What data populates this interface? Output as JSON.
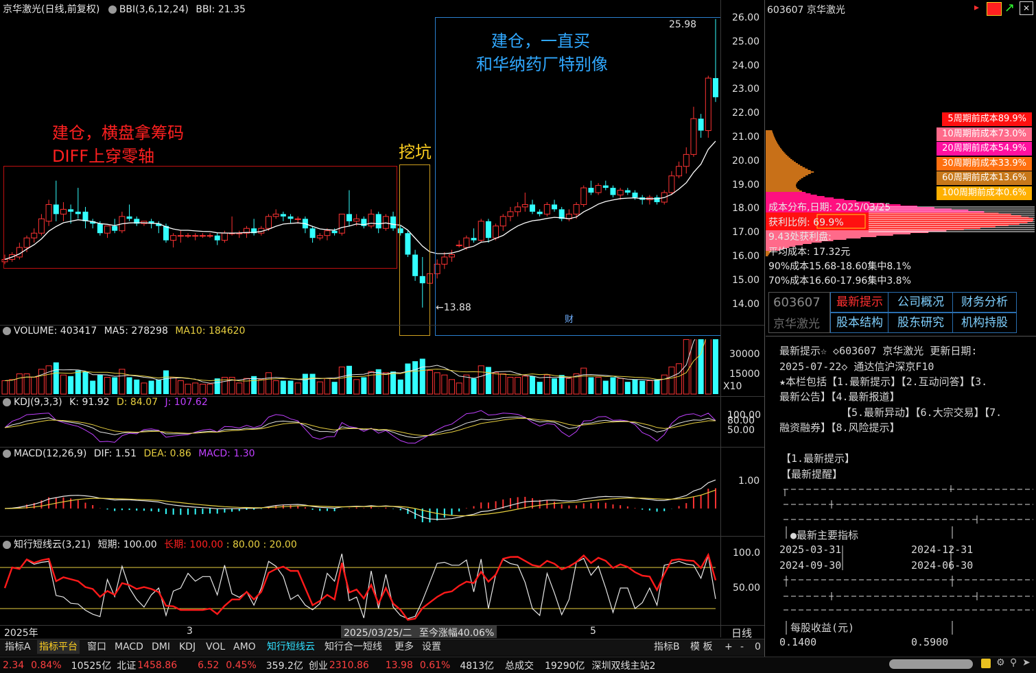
{
  "main": {
    "header": {
      "title": "京华激光(日线,前复权)",
      "indicator": "BBI(3,6,12,24)",
      "value": "BBI: 21.35"
    },
    "axis": [
      "26.00",
      "25.00",
      "24.00",
      "23.00",
      "22.00",
      "21.00",
      "20.00",
      "19.00",
      "18.00",
      "17.00",
      "16.00",
      "15.00",
      "14.00"
    ],
    "high_label": "25.98",
    "low_label": "←13.88",
    "cai_label": "财",
    "annotations": {
      "left_line1": "建仓，横盘拿筹码",
      "left_line2": "DIFF上穿零轴",
      "middle": "挖坑",
      "right_line1": "建仓，一直买",
      "right_line2": "和华纳药厂特别像"
    },
    "colors": {
      "up": "#ff3333",
      "down": "#33ffff",
      "bbi": "#ffffff"
    }
  },
  "chart_data": {
    "type": "candlestick",
    "ohlc": [
      [
        15.8,
        16.1,
        15.7,
        15.9
      ],
      [
        15.9,
        16.2,
        15.8,
        16.1
      ],
      [
        16.0,
        16.6,
        15.9,
        16.4
      ],
      [
        16.4,
        16.9,
        16.2,
        16.8
      ],
      [
        16.8,
        17.2,
        16.6,
        17.0
      ],
      [
        17.0,
        17.8,
        16.9,
        17.6
      ],
      [
        17.5,
        18.4,
        17.3,
        18.2
      ],
      [
        18.2,
        19.2,
        17.5,
        17.8
      ],
      [
        17.8,
        18.3,
        17.5,
        18.0
      ],
      [
        18.0,
        18.2,
        17.4,
        17.9
      ],
      [
        17.9,
        18.9,
        17.6,
        17.8
      ],
      [
        17.9,
        18.1,
        17.2,
        17.5
      ],
      [
        17.5,
        17.6,
        17.2,
        17.4
      ],
      [
        17.4,
        17.5,
        16.9,
        17.0
      ],
      [
        17.0,
        17.3,
        16.8,
        17.3
      ],
      [
        17.3,
        17.6,
        17.0,
        17.1
      ],
      [
        17.1,
        17.9,
        17.0,
        17.7
      ],
      [
        17.7,
        18.2,
        17.5,
        17.6
      ],
      [
        17.6,
        17.7,
        17.3,
        17.4
      ],
      [
        17.4,
        17.5,
        17.3,
        17.5
      ],
      [
        17.5,
        17.6,
        17.2,
        17.4
      ],
      [
        17.4,
        17.5,
        17.0,
        17.3
      ],
      [
        17.3,
        17.4,
        16.6,
        16.7
      ],
      [
        16.7,
        17.0,
        16.4,
        16.9
      ],
      [
        16.9,
        17.1,
        16.6,
        16.9
      ],
      [
        16.9,
        17.0,
        16.8,
        16.9
      ],
      [
        16.9,
        17.0,
        16.7,
        16.9
      ],
      [
        16.9,
        17.0,
        16.8,
        16.9
      ],
      [
        16.9,
        17.0,
        16.8,
        16.9
      ],
      [
        16.9,
        17.0,
        16.5,
        16.7
      ],
      [
        16.7,
        17.1,
        16.6,
        17.0
      ],
      [
        17.0,
        17.7,
        16.9,
        17.0
      ],
      [
        17.0,
        17.1,
        16.8,
        17.0
      ],
      [
        17.0,
        17.3,
        16.8,
        17.2
      ],
      [
        17.2,
        17.6,
        16.9,
        17.0
      ],
      [
        17.0,
        17.3,
        16.9,
        17.2
      ],
      [
        17.2,
        17.8,
        17.1,
        17.7
      ],
      [
        17.7,
        18.0,
        17.6,
        17.8
      ],
      [
        17.8,
        17.9,
        17.5,
        17.7
      ],
      [
        17.7,
        17.8,
        17.4,
        17.6
      ],
      [
        17.6,
        17.7,
        17.4,
        17.6
      ],
      [
        17.6,
        17.7,
        17.0,
        17.2
      ],
      [
        17.2,
        17.3,
        16.6,
        16.8
      ],
      [
        16.8,
        17.0,
        16.7,
        16.9
      ],
      [
        16.9,
        17.2,
        16.7,
        17.1
      ],
      [
        17.1,
        17.2,
        16.9,
        17.0
      ],
      [
        17.0,
        17.8,
        16.9,
        17.8
      ],
      [
        17.8,
        18.8,
        17.3,
        17.5
      ],
      [
        17.5,
        17.8,
        17.3,
        17.6
      ],
      [
        17.6,
        17.7,
        17.2,
        17.3
      ],
      [
        17.3,
        18.0,
        17.2,
        17.8
      ],
      [
        17.8,
        17.9,
        17.0,
        17.2
      ],
      [
        17.2,
        17.8,
        17.1,
        17.7
      ],
      [
        17.7,
        17.9,
        17.1,
        17.2
      ],
      [
        17.2,
        17.3,
        16.9,
        17.0
      ],
      [
        17.0,
        17.1,
        16.0,
        16.1
      ],
      [
        16.1,
        16.3,
        15.0,
        15.2
      ],
      [
        15.2,
        16.0,
        13.88,
        14.9
      ],
      [
        14.9,
        15.6,
        14.6,
        15.3
      ],
      [
        15.3,
        15.9,
        15.1,
        15.7
      ],
      [
        15.7,
        16.2,
        15.5,
        16.0
      ],
      [
        16.0,
        16.3,
        15.8,
        16.1
      ],
      [
        16.5,
        16.7,
        16.4,
        16.5
      ],
      [
        16.4,
        16.9,
        16.3,
        16.8
      ],
      [
        16.8,
        17.2,
        16.6,
        16.7
      ],
      [
        16.7,
        17.6,
        16.6,
        17.5
      ],
      [
        17.5,
        17.6,
        16.6,
        16.8
      ],
      [
        16.8,
        17.4,
        16.7,
        17.3
      ],
      [
        17.3,
        17.8,
        17.1,
        17.7
      ],
      [
        17.7,
        18.1,
        17.5,
        17.9
      ],
      [
        17.9,
        18.3,
        17.7,
        18.1
      ],
      [
        18.1,
        18.7,
        17.9,
        18.2
      ],
      [
        18.2,
        18.4,
        17.8,
        17.9
      ],
      [
        17.9,
        18.0,
        17.7,
        17.8
      ],
      [
        17.8,
        18.3,
        17.7,
        18.2
      ],
      [
        18.2,
        18.4,
        17.9,
        18.0
      ],
      [
        18.0,
        18.1,
        17.5,
        17.6
      ],
      [
        17.6,
        18.0,
        17.5,
        17.8
      ],
      [
        17.8,
        18.3,
        17.6,
        18.2
      ],
      [
        18.2,
        19.0,
        18.1,
        18.9
      ],
      [
        18.9,
        19.2,
        18.6,
        18.7
      ],
      [
        18.7,
        19.1,
        18.6,
        19.0
      ],
      [
        19.0,
        19.2,
        18.8,
        18.9
      ],
      [
        18.9,
        19.0,
        18.5,
        18.6
      ],
      [
        18.6,
        18.9,
        18.4,
        18.8
      ],
      [
        18.8,
        18.9,
        18.6,
        18.7
      ],
      [
        18.7,
        18.8,
        18.4,
        18.5
      ],
      [
        18.5,
        18.6,
        18.2,
        18.4
      ],
      [
        18.4,
        18.6,
        18.2,
        18.5
      ],
      [
        18.5,
        18.6,
        18.2,
        18.3
      ],
      [
        18.3,
        18.8,
        18.2,
        18.7
      ],
      [
        18.7,
        19.6,
        18.6,
        19.4
      ],
      [
        19.4,
        20.0,
        19.3,
        19.8
      ],
      [
        19.8,
        20.6,
        19.5,
        20.3
      ],
      [
        20.3,
        22.3,
        20.2,
        21.8
      ],
      [
        21.8,
        22.0,
        21.0,
        21.3
      ],
      [
        21.3,
        23.6,
        21.0,
        23.5
      ],
      [
        23.5,
        25.98,
        22.5,
        22.7
      ]
    ]
  },
  "volume": {
    "header": {
      "label": "VOLUME: 403417",
      "ma5": "MA5: 278298",
      "ma10": "MA10: 184620"
    },
    "axis": [
      "30000",
      "15000"
    ],
    "unit": "X10"
  },
  "kdj": {
    "header": {
      "label": "KDJ(9,3,3)",
      "k": "K: 91.92",
      "d": "D: 84.07",
      "j": "J: 107.62"
    },
    "axis": [
      "100.00",
      "80.00",
      "50.00"
    ]
  },
  "macd": {
    "header": {
      "label": "MACD(12,26,9)",
      "dif": "DIF: 1.51",
      "dea": "DEA: 0.86",
      "macd": "MACD: 1.30"
    },
    "axis": [
      "1.00"
    ]
  },
  "cloud": {
    "header": {
      "label": "知行短线云(3,21)",
      "short": "短期: 100.00",
      "long": "长期: 100.00",
      "l80": ": 80.00",
      "l20": ": 20.00"
    },
    "axis": [
      "100.0",
      "50.00"
    ]
  },
  "date_axis": {
    "year": "2025年",
    "m3": "3",
    "m5": "5",
    "selected": "2025/03/25/二",
    "change": "至今涨幅40.06%",
    "period": "日线"
  },
  "toolbar": {
    "tabs": [
      "指标A",
      "指标平台",
      "窗口",
      "MACD",
      "DMI",
      "KDJ",
      "VOL",
      "AMO",
      "知行短线云",
      "知行合一短线",
      "更多",
      "设置"
    ],
    "right": [
      "指标B",
      "模 板",
      "+",
      "-",
      "0"
    ]
  },
  "status": {
    "items": [
      {
        "t": "2.34",
        "c": "#ff4040"
      },
      {
        "t": "0.84%",
        "c": "#ff4040"
      },
      {
        "t": "10525亿",
        "c": "#e0e0e0"
      },
      {
        "t": "北证",
        "c": "#e0e0e0"
      },
      {
        "t": "1458.86",
        "c": "#ff4040"
      },
      {
        "t": "6.52",
        "c": "#ff4040"
      },
      {
        "t": "0.45%",
        "c": "#ff4040"
      },
      {
        "t": "359.2亿",
        "c": "#e0e0e0"
      },
      {
        "t": "创业",
        "c": "#e0e0e0"
      },
      {
        "t": "2310.86",
        "c": "#ff4040"
      },
      {
        "t": "13.98",
        "c": "#ff4040"
      },
      {
        "t": "0.61%",
        "c": "#ff4040"
      },
      {
        "t": "4813亿",
        "c": "#e0e0e0"
      },
      {
        "t": "总成交",
        "c": "#e0e0e0"
      },
      {
        "t": "19290亿",
        "c": "#e0e0e0"
      },
      {
        "t": "深圳双线主站2",
        "c": "#e0e0e0"
      }
    ]
  },
  "right_panel": {
    "title": "603607 京华激光",
    "chips": [
      {
        "label": "5周期前成本89.9%",
        "bg": "#ff1010"
      },
      {
        "label": "10周期前成本73.0%",
        "bg": "#ff6a8a"
      },
      {
        "label": "20周期前成本54.9%",
        "bg": "#ff10a0"
      },
      {
        "label": "30周期前成本33.9%",
        "bg": "#ff7010"
      },
      {
        "label": "60周期前成本13.6%",
        "bg": "#c8781a"
      },
      {
        "label": "100周期前成本0.6%",
        "bg": "#ffb000"
      }
    ],
    "chip_text": {
      "date": "成本分布,日期: 2025/03/25",
      "profit": "获利比例: 69.9%",
      "profit_amt": "9.43处获利盘:",
      "avg": "平均成本: 17.32元",
      "c90": "90%成本15.68-18.60集中8.1%",
      "c70": "70%成本16.60-17.96集中3.8%"
    },
    "stock_code": "603607",
    "stock_name": "京华激光",
    "f10_buttons": [
      "最新提示",
      "公司概况",
      "财务分析",
      "股本结构",
      "股东研究",
      "机构持股"
    ],
    "f10": {
      "l1": "最新提示☆ ◇603607 京华激光 更新日期:",
      "l2": "2025-07-22◇ 通达信沪深京F10",
      "l3": "★本栏包括【1.最新提示】【2.互动问答】【3.",
      "l4": "最新公告】【4.最新报道】",
      "l5": "【5.最新异动】【6.大宗交易】【7.",
      "l6": "融资融券】【8.风险提示】",
      "l7": "【1.最新提示】",
      "l8": "【最新提醒】",
      "l9": "●最新主要指标",
      "d1": "2025-03-31",
      "d2": "2024-12-31",
      "d3": "2024-09-30",
      "d4": "2024-06-30",
      "eps": "每股收益(元)",
      "e1": "0.1400",
      "e2": "0.5900"
    }
  }
}
